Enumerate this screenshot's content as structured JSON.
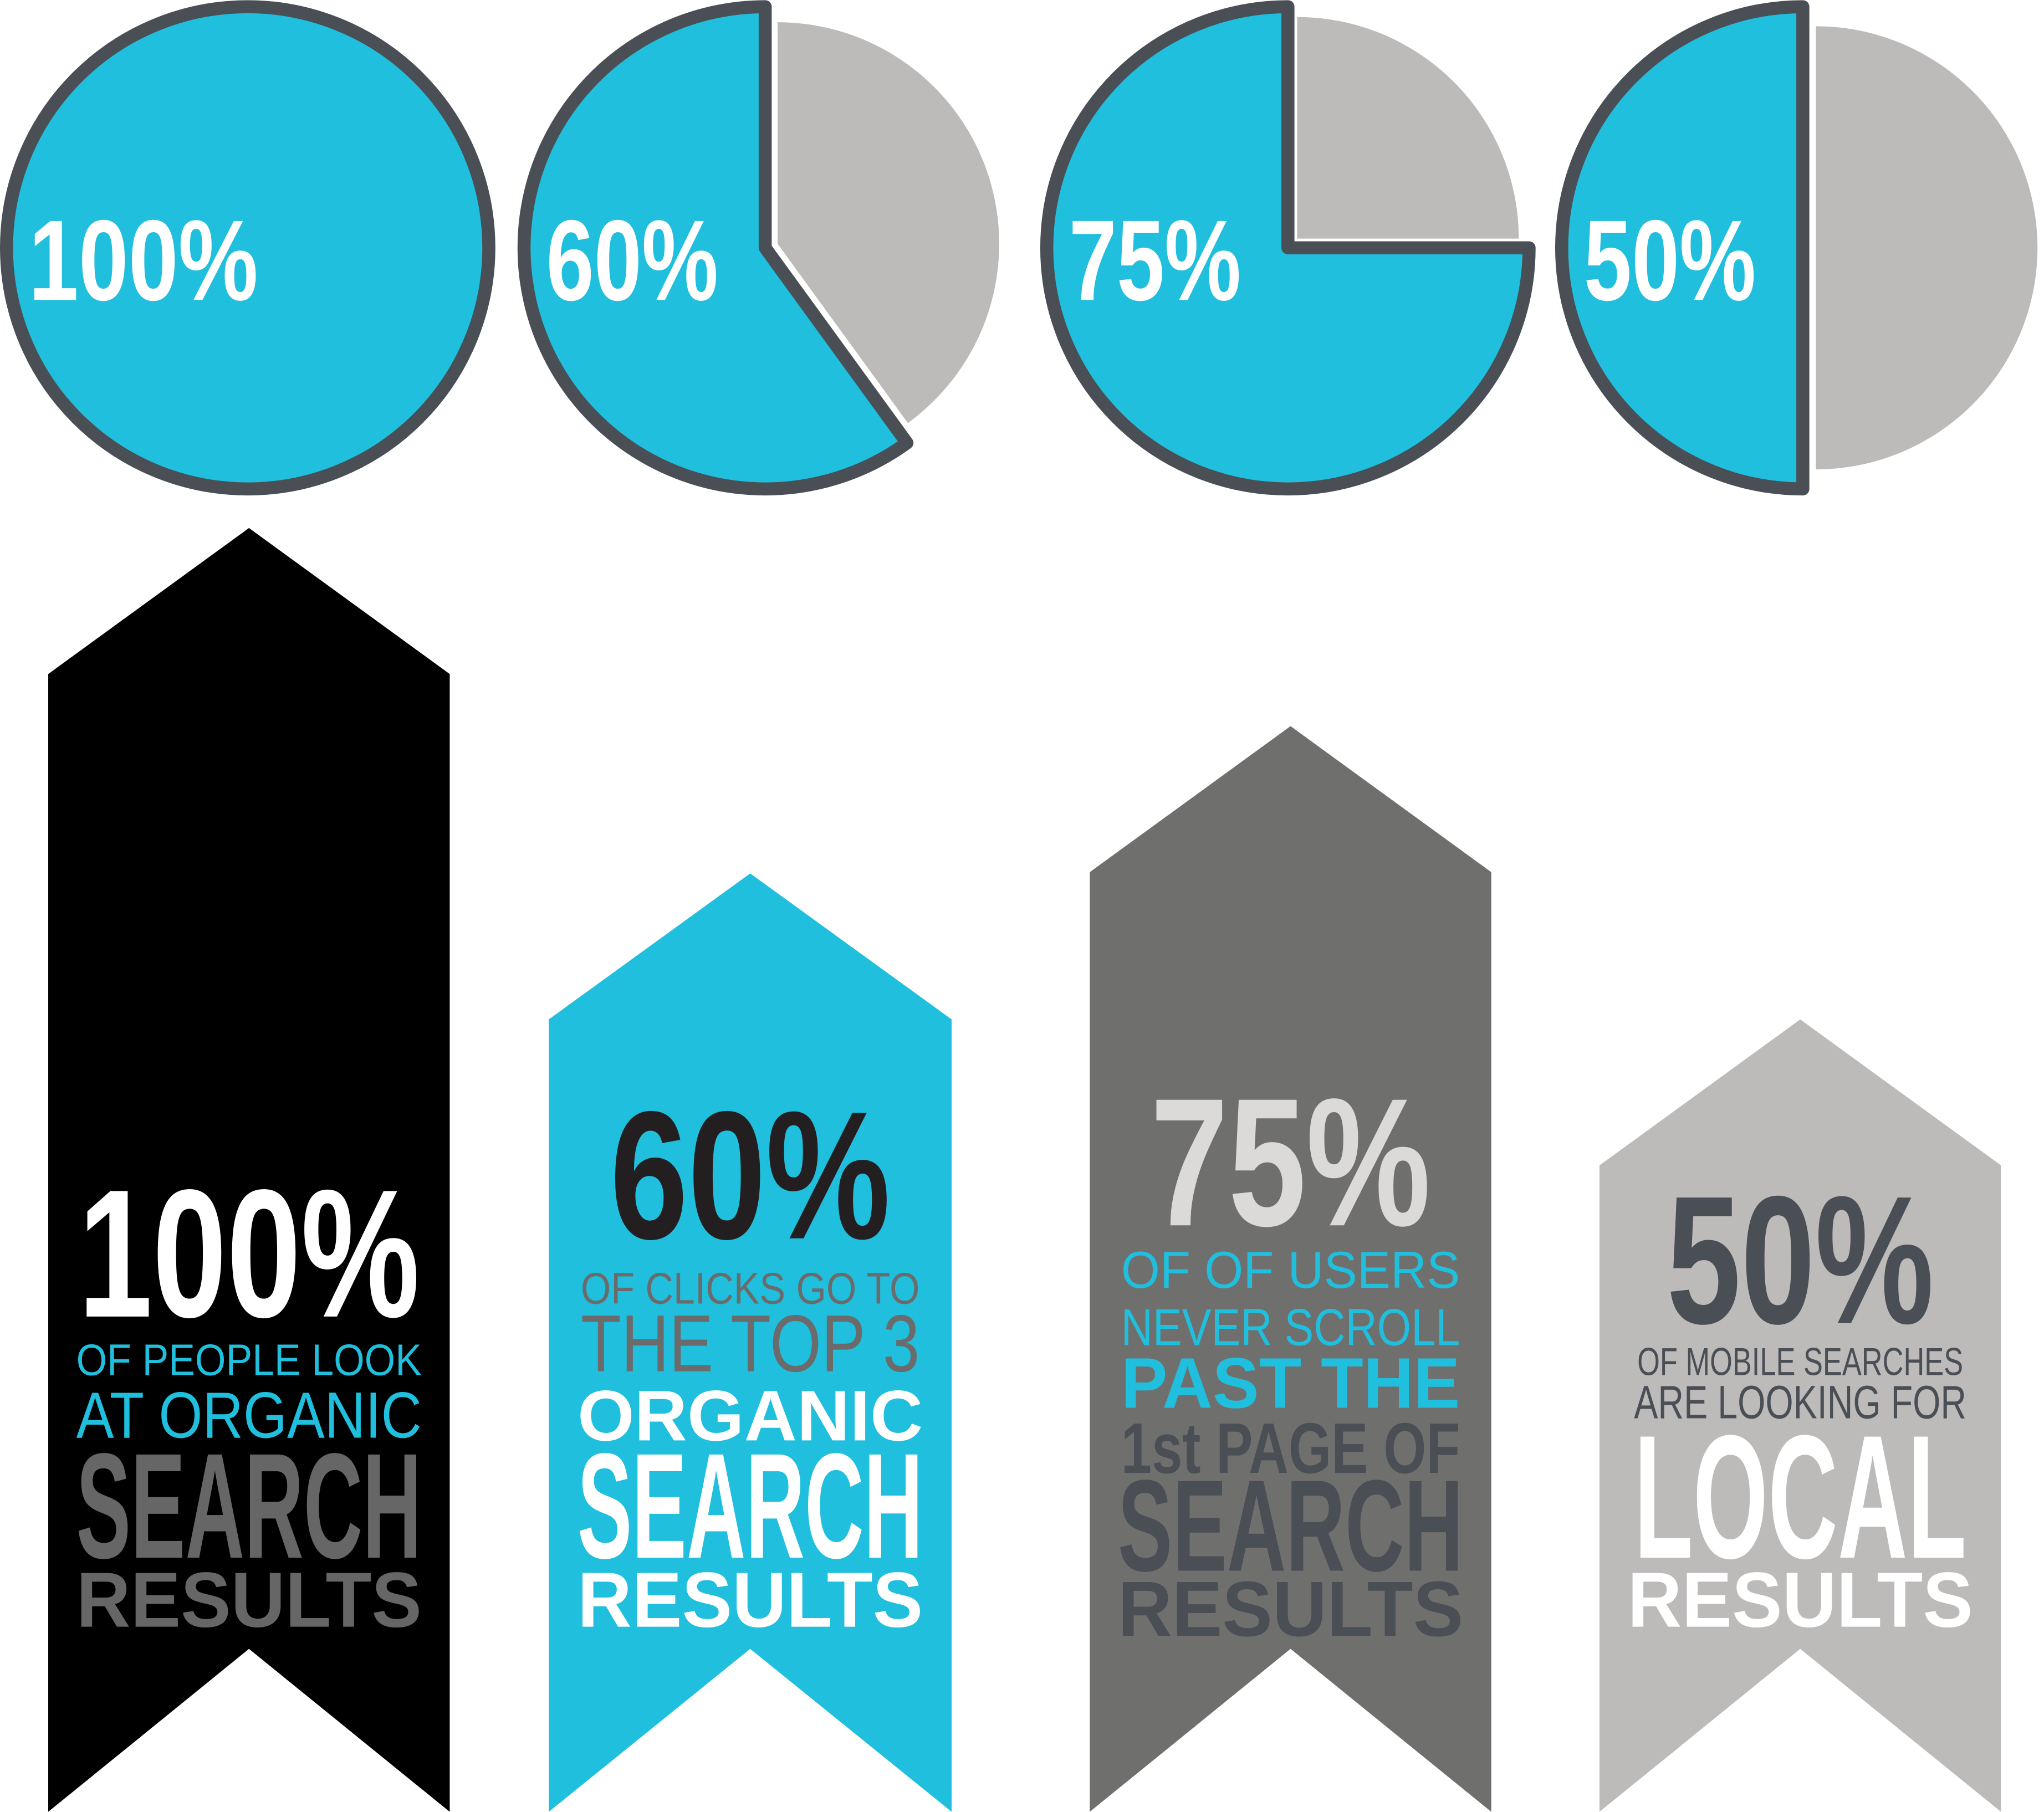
{
  "chart_data": [
    {
      "type": "pie",
      "label": "100%",
      "values": [
        100
      ],
      "colors": [
        "#1fbfdd"
      ]
    },
    {
      "type": "pie",
      "label": "60%",
      "values": [
        60,
        40
      ],
      "colors": [
        "#1fbfdd",
        "#bdbbba"
      ]
    },
    {
      "type": "pie",
      "label": "75%",
      "values": [
        75,
        25
      ],
      "colors": [
        "#1fbfdd",
        "#bdbbba"
      ]
    },
    {
      "type": "pie",
      "label": "50%",
      "values": [
        50,
        50
      ],
      "colors": [
        "#1fbfdd",
        "#bdbbba"
      ]
    }
  ],
  "ribbons": [
    {
      "lines": [
        "100%",
        "OF PEOPLE LOOK",
        "AT ORGANIC",
        "SEARCH",
        "RESULTS"
      ]
    },
    {
      "lines": [
        "60%",
        "OF CLICKS GO TO",
        "THE TOP 3",
        "ORGANIC",
        "SEARCH",
        "RESULTS"
      ]
    },
    {
      "lines": [
        "75%",
        "OF OF USERS",
        "NEVER SCROLL",
        "PAST THE",
        "1st PAGE OF",
        "SEARCH",
        "RESULTS"
      ]
    },
    {
      "lines": [
        "50%",
        "OF MOBILE SEARCHES",
        "ARE LOOKING FOR",
        "LOCAL",
        "RESULTS"
      ]
    }
  ]
}
